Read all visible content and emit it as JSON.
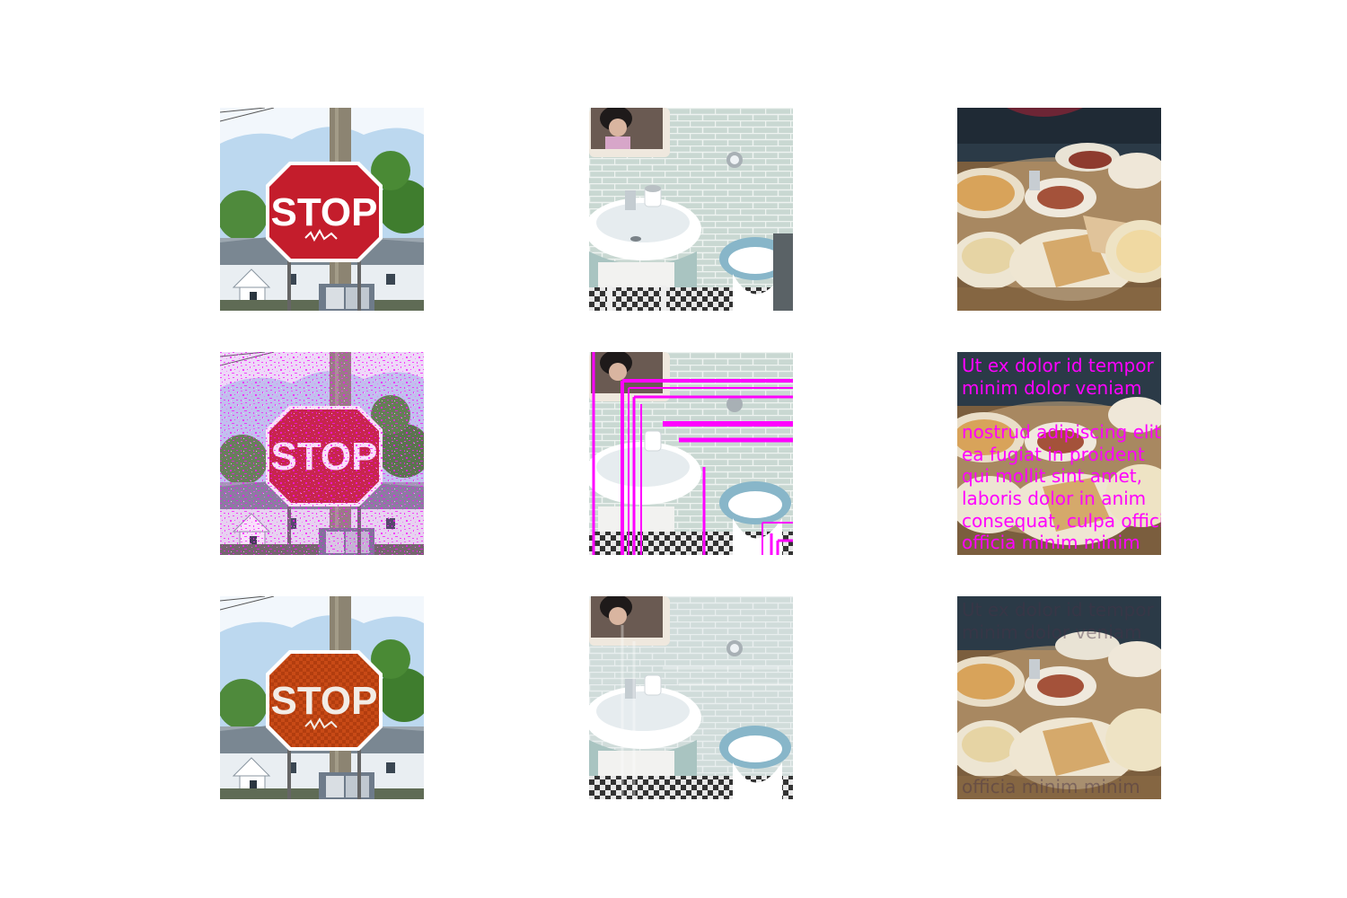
{
  "stop_sign": {
    "label": "STOP"
  },
  "overlay_text": {
    "line1": "Ut ex dolor id tempor",
    "line2": "minim dolor veniam",
    "line3": "nostrud adipiscing elit",
    "line4": "ea fugiat in proident",
    "line5": "qui mollit sint amet,",
    "line6": "laboris dolor in anim",
    "line7": "consequat, culpa officia",
    "line8": "officia minim minim"
  },
  "colors": {
    "overlay": "#ff00ff"
  }
}
